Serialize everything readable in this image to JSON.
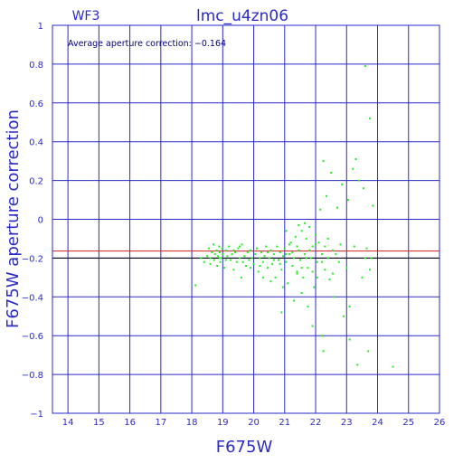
{
  "chart_data": {
    "type": "scatter",
    "title": "lmc_u4zn06",
    "chip_label": "WF3",
    "xlabel": "F675W",
    "ylabel": "F675W aperture correction",
    "annotation": "Average aperture correction: −0.164",
    "xlim": [
      13.5,
      26
    ],
    "ylim": [
      -1,
      1
    ],
    "xticks": [
      14,
      15,
      16,
      17,
      18,
      19,
      20,
      21,
      22,
      23,
      24,
      25,
      26
    ],
    "yticks": [
      -1,
      -0.8,
      -0.6,
      -0.4,
      -0.2,
      0,
      0.2,
      0.4,
      0.6,
      0.8,
      1
    ],
    "ytick_labels": [
      "−1",
      "−0.8",
      "−0.6",
      "−0.4",
      "−0.2",
      "0",
      "0.2",
      "0.4",
      "0.6",
      "0.8",
      "1"
    ],
    "grid": true,
    "hlines": [
      {
        "y": -0.164,
        "color": "#cc2222",
        "meaning": "average"
      },
      {
        "y": -0.2,
        "color": "#000000",
        "meaning": "reference"
      }
    ],
    "point_color": "#22ee22",
    "points": [
      [
        18.12,
        -0.34
      ],
      [
        18.4,
        -0.22
      ],
      [
        18.5,
        -0.19
      ],
      [
        18.55,
        -0.15
      ],
      [
        18.6,
        -0.2
      ],
      [
        18.65,
        -0.17
      ],
      [
        18.7,
        -0.13
      ],
      [
        18.72,
        -0.21
      ],
      [
        18.75,
        -0.18
      ],
      [
        18.8,
        -0.16
      ],
      [
        18.82,
        -0.24
      ],
      [
        18.85,
        -0.19
      ],
      [
        18.88,
        -0.14
      ],
      [
        18.9,
        -0.17
      ],
      [
        18.92,
        -0.22
      ],
      [
        18.95,
        -0.2
      ],
      [
        18.98,
        -0.15
      ],
      [
        19.0,
        -0.18
      ],
      [
        19.05,
        -0.25
      ],
      [
        19.1,
        -0.16
      ],
      [
        19.15,
        -0.19
      ],
      [
        19.2,
        -0.14
      ],
      [
        19.25,
        -0.21
      ],
      [
        19.3,
        -0.18
      ],
      [
        19.35,
        -0.26
      ],
      [
        19.4,
        -0.17
      ],
      [
        19.45,
        -0.22
      ],
      [
        19.5,
        -0.15
      ],
      [
        19.55,
        -0.2
      ],
      [
        19.6,
        -0.3
      ],
      [
        19.62,
        -0.13
      ],
      [
        19.7,
        -0.19
      ],
      [
        19.75,
        -0.24
      ],
      [
        19.8,
        -0.17
      ],
      [
        19.85,
        -0.21
      ],
      [
        19.9,
        -0.16
      ],
      [
        19.95,
        -0.2
      ],
      [
        20.0,
        -0.23
      ],
      [
        20.05,
        -0.18
      ],
      [
        20.1,
        -0.15
      ],
      [
        20.15,
        -0.27
      ],
      [
        20.2,
        -0.2
      ],
      [
        20.25,
        -0.17
      ],
      [
        20.3,
        -0.22
      ],
      [
        20.35,
        -0.19
      ],
      [
        20.4,
        -0.14
      ],
      [
        20.45,
        -0.25
      ],
      [
        20.5,
        -0.2
      ],
      [
        20.55,
        -0.16
      ],
      [
        20.6,
        -0.23
      ],
      [
        20.65,
        -0.18
      ],
      [
        20.7,
        -0.3
      ],
      [
        20.75,
        -0.14
      ],
      [
        20.8,
        -0.21
      ],
      [
        20.85,
        -0.17
      ],
      [
        20.9,
        -0.26
      ],
      [
        20.95,
        -0.19
      ],
      [
        21.0,
        -0.15
      ],
      [
        21.05,
        -0.22
      ],
      [
        21.1,
        -0.33
      ],
      [
        21.15,
        -0.18
      ],
      [
        21.2,
        -0.12
      ],
      [
        21.25,
        -0.24
      ],
      [
        21.3,
        -0.2
      ],
      [
        21.35,
        -0.09
      ],
      [
        21.4,
        -0.28
      ],
      [
        21.45,
        -0.16
      ],
      [
        21.5,
        -0.21
      ],
      [
        21.55,
        -0.06
      ],
      [
        21.6,
        -0.3
      ],
      [
        21.65,
        -0.18
      ],
      [
        21.7,
        -0.1
      ],
      [
        21.75,
        -0.25
      ],
      [
        21.8,
        -0.04
      ],
      [
        21.85,
        -0.2
      ],
      [
        21.9,
        -0.14
      ],
      [
        21.95,
        -0.35
      ],
      [
        22.0,
        -0.08
      ],
      [
        22.05,
        -0.22
      ],
      [
        22.1,
        -0.12
      ],
      [
        22.15,
        0.05
      ],
      [
        22.2,
        -0.18
      ],
      [
        22.25,
        0.3
      ],
      [
        22.3,
        -0.26
      ],
      [
        22.35,
        0.12
      ],
      [
        22.4,
        -0.1
      ],
      [
        22.45,
        -0.31
      ],
      [
        22.5,
        0.24
      ],
      [
        22.55,
        -0.16
      ],
      [
        22.6,
        -0.4
      ],
      [
        22.7,
        0.06
      ],
      [
        22.75,
        -0.22
      ],
      [
        22.8,
        -0.13
      ],
      [
        22.85,
        0.18
      ],
      [
        22.9,
        -0.5
      ],
      [
        23.0,
        -0.25
      ],
      [
        23.05,
        0.1
      ],
      [
        23.1,
        -0.62
      ],
      [
        23.2,
        0.26
      ],
      [
        23.25,
        -0.14
      ],
      [
        23.3,
        0.31
      ],
      [
        23.35,
        -0.75
      ],
      [
        23.4,
        0.2
      ],
      [
        23.5,
        -0.3
      ],
      [
        23.55,
        0.16
      ],
      [
        23.6,
        0.79
      ],
      [
        23.65,
        -0.15
      ],
      [
        23.7,
        -0.68
      ],
      [
        23.75,
        0.52
      ],
      [
        23.8,
        -0.2
      ],
      [
        23.85,
        0.07
      ],
      [
        24.5,
        -0.76
      ],
      [
        18.3,
        -0.2
      ],
      [
        18.6,
        -0.23
      ],
      [
        18.9,
        -0.2
      ],
      [
        19.1,
        -0.21
      ],
      [
        19.35,
        -0.16
      ],
      [
        19.55,
        -0.14
      ],
      [
        19.65,
        -0.22
      ],
      [
        19.9,
        -0.25
      ],
      [
        20.2,
        -0.24
      ],
      [
        20.45,
        -0.17
      ],
      [
        20.65,
        -0.21
      ],
      [
        20.85,
        -0.23
      ],
      [
        21.05,
        -0.18
      ],
      [
        21.15,
        -0.13
      ],
      [
        21.25,
        -0.17
      ],
      [
        21.4,
        -0.14
      ],
      [
        21.55,
        -0.25
      ],
      [
        21.7,
        -0.2
      ],
      [
        21.8,
        -0.16
      ],
      [
        21.9,
        -0.27
      ],
      [
        22.0,
        -0.13
      ],
      [
        22.05,
        -0.3
      ],
      [
        22.2,
        -0.22
      ],
      [
        22.3,
        -0.14
      ],
      [
        22.4,
        -0.2
      ],
      [
        22.55,
        -0.28
      ],
      [
        22.65,
        -0.18
      ],
      [
        21.3,
        -0.42
      ],
      [
        21.55,
        -0.38
      ],
      [
        20.9,
        -0.48
      ],
      [
        20.3,
        -0.3
      ],
      [
        20.95,
        -0.35
      ],
      [
        21.75,
        -0.45
      ],
      [
        21.05,
        -0.06
      ],
      [
        21.45,
        -0.03
      ],
      [
        21.65,
        -0.02
      ],
      [
        21.9,
        -0.55
      ],
      [
        22.2,
        -0.6
      ],
      [
        22.25,
        -0.68
      ],
      [
        23.1,
        -0.45
      ],
      [
        23.6,
        -0.2
      ],
      [
        23.75,
        -0.26
      ],
      [
        21.4,
        -0.27
      ],
      [
        20.55,
        -0.32
      ]
    ]
  }
}
